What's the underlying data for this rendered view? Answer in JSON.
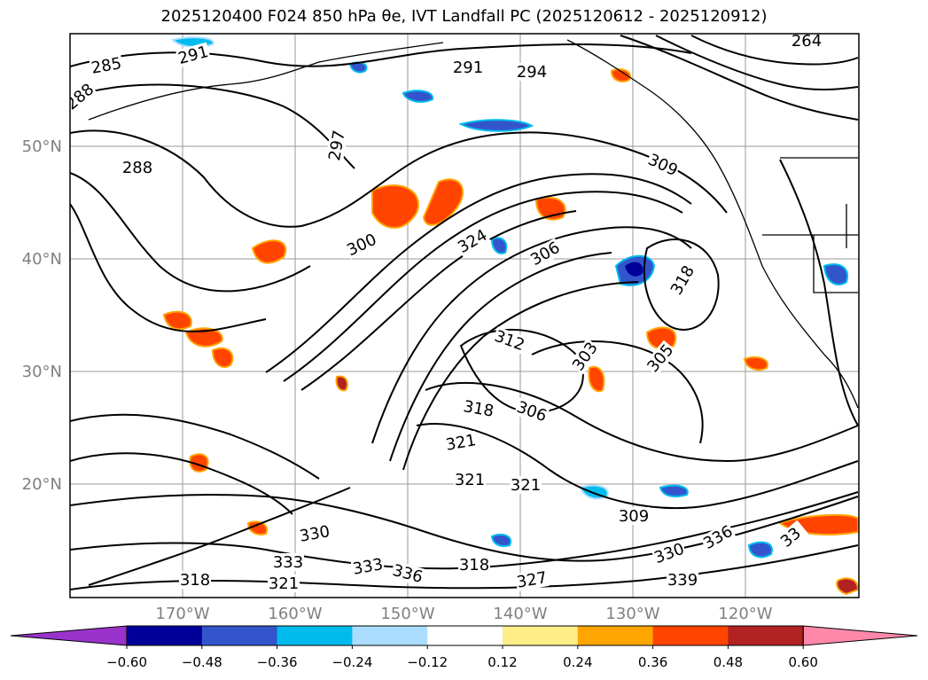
{
  "title": "2025120400 F024 850 hPa θe, IVT Landfall PC (2025120612 - 2025120912)",
  "map": {
    "lat_ticks": [
      "50°N",
      "40°N",
      "30°N",
      "20°N"
    ],
    "lon_ticks": [
      "170°W",
      "160°W",
      "150°W",
      "140°W",
      "130°W",
      "120°W"
    ],
    "contour_labels": [
      "285",
      "291",
      "291",
      "294",
      "264",
      "288",
      "297",
      "288",
      "309",
      "300",
      "324",
      "306",
      "318",
      "312",
      "303",
      "305",
      "306",
      "318",
      "321",
      "321",
      "321",
      "309",
      "336",
      "330",
      "339",
      "333",
      "330",
      "333",
      "336",
      "318",
      "327",
      "321",
      "318",
      "33"
    ]
  },
  "colorbar": {
    "colors": [
      "#9933cc",
      "#000099",
      "#3355cc",
      "#00bbee",
      "#aaddff",
      "#ffffff",
      "#ffee88",
      "#ffa500",
      "#ff4400",
      "#b22222",
      "#ff88aa"
    ],
    "tick_labels": [
      "−0.60",
      "−0.48",
      "−0.36",
      "−0.24",
      "−0.12",
      "0.12",
      "0.24",
      "0.36",
      "0.48",
      "0.60"
    ]
  }
}
